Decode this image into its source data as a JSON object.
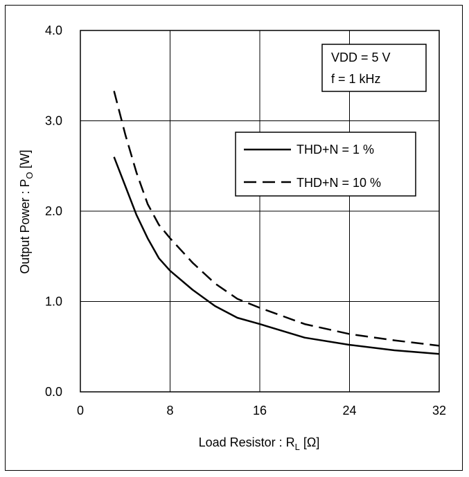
{
  "chart_data": {
    "type": "line",
    "xlabel": {
      "main": "Load Resistor : R",
      "sub": "L",
      "unit": " [Ω]"
    },
    "ylabel": {
      "main": "Output Power : P",
      "sub": "O",
      "unit": " [W]"
    },
    "xlim": [
      0,
      32
    ],
    "ylim": [
      0,
      4
    ],
    "xticks": [
      "0",
      "8",
      "16",
      "24",
      "32"
    ],
    "yticks": [
      "0.0",
      "1.0",
      "2.0",
      "3.0",
      "4.0"
    ],
    "grid": true,
    "conditions": [
      "VDD = 5 V",
      "f = 1 kHz"
    ],
    "legend_position": "upper-right",
    "series": [
      {
        "name": "THD+N = 1 %",
        "style": "solid",
        "x": [
          3,
          4,
          5,
          6,
          7,
          8,
          10,
          12,
          14,
          16,
          20,
          24,
          28,
          32
        ],
        "y": [
          2.6,
          2.28,
          1.96,
          1.7,
          1.48,
          1.34,
          1.13,
          0.95,
          0.82,
          0.75,
          0.6,
          0.52,
          0.46,
          0.42
        ]
      },
      {
        "name": "THD+N = 10 %",
        "style": "dashed",
        "x": [
          3,
          4,
          5,
          6,
          7,
          8,
          10,
          12,
          14,
          16,
          20,
          24,
          28,
          32
        ],
        "y": [
          3.33,
          2.85,
          2.43,
          2.08,
          1.85,
          1.7,
          1.43,
          1.2,
          1.03,
          0.93,
          0.75,
          0.64,
          0.57,
          0.51
        ]
      }
    ]
  }
}
